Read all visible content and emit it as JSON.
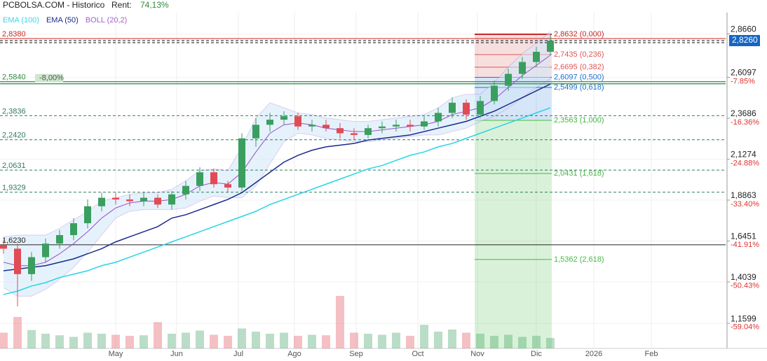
{
  "header": {
    "site": "PCBOLSA.COM - Historico",
    "rent_label": "Rent:",
    "rent_value": "74,13%"
  },
  "chart_data": {
    "type": "candlestick",
    "x": [
      0,
      1,
      2,
      3,
      4,
      5,
      6,
      7,
      8,
      9,
      10,
      11,
      12,
      13,
      14,
      15,
      16,
      17,
      18,
      19,
      20,
      21,
      22,
      23,
      24,
      25,
      26,
      27,
      28,
      29,
      30,
      31,
      32,
      33,
      34,
      35,
      36,
      37,
      38,
      39
    ],
    "open": [
      1.62,
      1.6,
      1.45,
      1.55,
      1.63,
      1.68,
      1.75,
      1.85,
      1.9,
      1.89,
      1.88,
      1.9,
      1.86,
      1.92,
      1.97,
      2.05,
      1.98,
      1.96,
      2.25,
      2.33,
      2.36,
      2.38,
      2.32,
      2.33,
      2.31,
      2.28,
      2.27,
      2.31,
      2.32,
      2.33,
      2.32,
      2.35,
      2.4,
      2.46,
      2.39,
      2.47,
      2.56,
      2.63,
      2.7,
      2.76
    ],
    "high": [
      1.65,
      1.63,
      1.58,
      1.66,
      1.71,
      1.78,
      1.89,
      1.93,
      1.93,
      1.92,
      1.93,
      1.92,
      1.94,
      2.0,
      2.08,
      2.07,
      2.0,
      2.28,
      2.37,
      2.4,
      2.41,
      2.4,
      2.36,
      2.36,
      2.34,
      2.31,
      2.33,
      2.35,
      2.36,
      2.36,
      2.38,
      2.43,
      2.49,
      2.48,
      2.5,
      2.59,
      2.66,
      2.73,
      2.79,
      2.86
    ],
    "low": [
      1.57,
      1.26,
      1.41,
      1.52,
      1.6,
      1.65,
      1.72,
      1.82,
      1.86,
      1.85,
      1.85,
      1.84,
      1.83,
      1.89,
      1.94,
      1.96,
      1.93,
      1.94,
      2.2,
      2.29,
      2.33,
      2.3,
      2.29,
      2.29,
      2.25,
      2.24,
      2.25,
      2.28,
      2.29,
      2.29,
      2.3,
      2.32,
      2.37,
      2.36,
      2.37,
      2.45,
      2.53,
      2.6,
      2.67,
      2.74
    ],
    "close": [
      1.6,
      1.45,
      1.55,
      1.63,
      1.68,
      1.75,
      1.85,
      1.9,
      1.89,
      1.88,
      1.9,
      1.86,
      1.92,
      1.97,
      2.05,
      1.98,
      1.96,
      2.25,
      2.33,
      2.36,
      2.38,
      2.32,
      2.33,
      2.31,
      2.28,
      2.27,
      2.31,
      2.32,
      2.33,
      2.32,
      2.35,
      2.4,
      2.46,
      2.39,
      2.47,
      2.56,
      2.63,
      2.7,
      2.76,
      2.826
    ],
    "up_color": "#3a9e5f",
    "down_color": "#e04b55",
    "volume": [
      30,
      60,
      35,
      28,
      25,
      22,
      30,
      28,
      26,
      24,
      25,
      50,
      28,
      30,
      34,
      26,
      24,
      38,
      32,
      28,
      30,
      24,
      26,
      25,
      100,
      30,
      28,
      26,
      30,
      24,
      45,
      32,
      36,
      30,
      28,
      24,
      26,
      22,
      24,
      20
    ],
    "series": [
      {
        "name": "EMA (100)",
        "color": "#26d4e6",
        "values": [
          1.33,
          1.35,
          1.38,
          1.4,
          1.43,
          1.45,
          1.47,
          1.5,
          1.52,
          1.55,
          1.58,
          1.61,
          1.64,
          1.67,
          1.7,
          1.73,
          1.76,
          1.79,
          1.82,
          1.86,
          1.89,
          1.92,
          1.95,
          1.98,
          2.01,
          2.04,
          2.07,
          2.09,
          2.12,
          2.15,
          2.17,
          2.2,
          2.22,
          2.25,
          2.28,
          2.31,
          2.34,
          2.37,
          2.4,
          2.43
        ]
      },
      {
        "name": "EMA (50)",
        "color": "#1a2a8c",
        "values": [
          1.47,
          1.48,
          1.49,
          1.5,
          1.52,
          1.54,
          1.57,
          1.6,
          1.64,
          1.67,
          1.7,
          1.73,
          1.78,
          1.8,
          1.83,
          1.86,
          1.89,
          1.93,
          1.99,
          2.05,
          2.11,
          2.15,
          2.18,
          2.2,
          2.21,
          2.22,
          2.24,
          2.25,
          2.26,
          2.27,
          2.29,
          2.31,
          2.33,
          2.35,
          2.38,
          2.41,
          2.45,
          2.49,
          2.53,
          2.57
        ]
      },
      {
        "name": "BOLL (20,2)",
        "color": "#9b4fc9",
        "band_color": "#cfe8fa",
        "values": [
          1.52,
          1.5,
          1.5,
          1.52,
          1.57,
          1.63,
          1.7,
          1.78,
          1.84,
          1.87,
          1.88,
          1.88,
          1.89,
          1.92,
          1.97,
          1.99,
          1.98,
          2.05,
          2.17,
          2.28,
          2.33,
          2.34,
          2.33,
          2.31,
          2.3,
          2.29,
          2.29,
          2.3,
          2.31,
          2.32,
          2.33,
          2.35,
          2.39,
          2.41,
          2.43,
          2.48,
          2.55,
          2.62,
          2.68,
          2.74
        ],
        "upper": [
          1.67,
          1.68,
          1.68,
          1.68,
          1.72,
          1.77,
          1.82,
          1.88,
          1.9,
          1.92,
          1.93,
          1.93,
          1.95,
          2.0,
          2.06,
          2.07,
          2.06,
          2.2,
          2.37,
          2.46,
          2.43,
          2.4,
          2.39,
          2.37,
          2.36,
          2.35,
          2.35,
          2.36,
          2.37,
          2.38,
          2.39,
          2.43,
          2.49,
          2.51,
          2.51,
          2.58,
          2.67,
          2.75,
          2.81,
          2.88
        ],
        "lower": [
          1.37,
          1.32,
          1.32,
          1.36,
          1.42,
          1.49,
          1.58,
          1.68,
          1.78,
          1.82,
          1.83,
          1.83,
          1.83,
          1.84,
          1.88,
          1.91,
          1.9,
          1.9,
          1.97,
          2.1,
          2.23,
          2.28,
          2.27,
          2.25,
          2.24,
          2.23,
          2.23,
          2.24,
          2.25,
          2.26,
          2.27,
          2.27,
          2.29,
          2.31,
          2.35,
          2.38,
          2.43,
          2.49,
          2.55,
          2.6
        ]
      }
    ],
    "xlim": [
      -0.25,
      51.5
    ],
    "xticks": [
      {
        "value": 8,
        "label": "May"
      },
      {
        "value": 12.35,
        "label": "Jun"
      },
      {
        "value": 16.75,
        "label": "Jul"
      },
      {
        "value": 20.75,
        "label": "Ago"
      },
      {
        "value": 25.15,
        "label": "Sep"
      },
      {
        "value": 29.55,
        "label": "Oct"
      },
      {
        "value": 33.8,
        "label": "Nov"
      },
      {
        "value": 38,
        "label": "Dic"
      },
      {
        "value": 42.1,
        "label": "2026"
      },
      {
        "value": 46.2,
        "label": "Feb"
      }
    ],
    "ylim": [
      1.0124,
      3.0652
    ],
    "yticks": [
      {
        "value": 2.866,
        "label": "2,8660"
      },
      {
        "value": 2.6097,
        "label": "2,6097"
      },
      {
        "value": 2.3686,
        "label": "2,3686"
      },
      {
        "value": 2.1274,
        "label": "2,1274"
      },
      {
        "value": 1.8863,
        "label": "1,8863"
      },
      {
        "value": 1.6451,
        "label": "1,6451"
      },
      {
        "value": 1.4039,
        "label": "1,4039"
      },
      {
        "value": 1.1599,
        "label": "1,1599"
      }
    ],
    "y2lim": [
      -64.18,
      8.46
    ],
    "y2ticks": [
      {
        "value": -7.85,
        "label": "-7.85%"
      },
      {
        "value": -16.36,
        "label": "-16.36%"
      },
      {
        "value": -24.88,
        "label": "-24.88%"
      },
      {
        "value": -33.4,
        "label": "-33.40%"
      },
      {
        "value": -41.91,
        "label": "-41.91%"
      },
      {
        "value": -50.43,
        "label": "-50.43%"
      },
      {
        "value": -59.04,
        "label": "-59.04%"
      }
    ],
    "grid": true,
    "last_price": {
      "value": 2.826,
      "label": "2,8260",
      "color": "#1565c0"
    },
    "price_lines": [
      {
        "value": 2.838,
        "label": "2,8380",
        "style": "solid",
        "color": "#c62828"
      },
      {
        "value": 2.584,
        "label": "2,5840",
        "style": "double",
        "color": "#2e8b3e"
      },
      {
        "value": 2.3836,
        "label": "2,3836",
        "style": "dashed",
        "color": "#2e7d5a"
      },
      {
        "value": 2.242,
        "label": "2,2420",
        "style": "dashed",
        "color": "#2e7d5a"
      },
      {
        "value": 2.0631,
        "label": "2,0631",
        "style": "dashed",
        "color": "#2e7d5a"
      },
      {
        "value": 1.9329,
        "label": "1,9329",
        "style": "dashed",
        "color": "#2e7d5a"
      },
      {
        "value": 1.623,
        "label": "1,6230",
        "style": "solid",
        "color": "#222222"
      }
    ],
    "change_marker": {
      "label": "-8,00%"
    },
    "fib_x": [
      33.6,
      39.1
    ],
    "fib_levels": [
      {
        "value": 2.8632,
        "label": "2,8632 (0,000)",
        "color": "#c62828"
      },
      {
        "value": 2.7435,
        "label": "2,7435 (0,236)",
        "color": "#e05555"
      },
      {
        "value": 2.6695,
        "label": "2,6695 (0,382)",
        "color": "#e05555"
      },
      {
        "value": 2.6097,
        "label": "2,6097 (0,500)",
        "color": "#1e6fd0"
      },
      {
        "value": 2.5499,
        "label": "2,5499 (0,618)",
        "color": "#1e6fd0"
      },
      {
        "value": 2.3563,
        "label": "2,3563 (1,000)",
        "color": "#43b943"
      },
      {
        "value": 2.0431,
        "label": "2,0431 (1,618)",
        "color": "#43b943"
      },
      {
        "value": 1.5362,
        "label": "1,5362 (2,618)",
        "color": "#43b943"
      }
    ]
  }
}
